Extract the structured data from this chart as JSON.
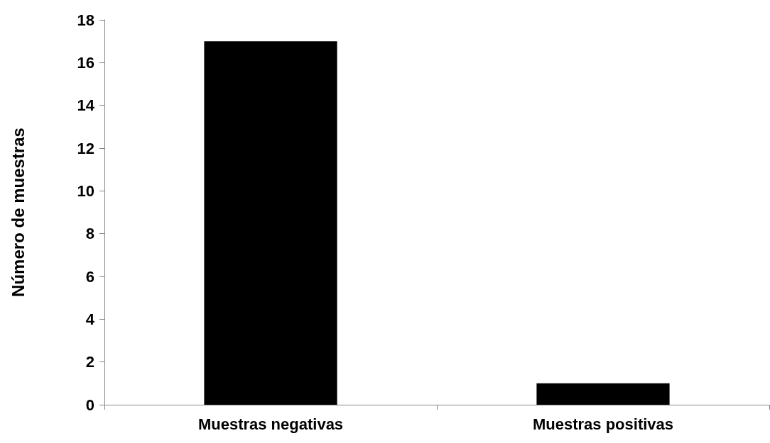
{
  "chart_data": {
    "type": "bar",
    "ylabel": "Número de muestras",
    "categories": [
      "Muestras negativas",
      "Muestras positivas"
    ],
    "values": [
      17,
      1
    ],
    "color": "#000000",
    "ylim": [
      0,
      18
    ],
    "yticks": [
      0,
      2,
      4,
      6,
      8,
      10,
      12,
      14,
      16,
      18
    ],
    "grid": false
  }
}
